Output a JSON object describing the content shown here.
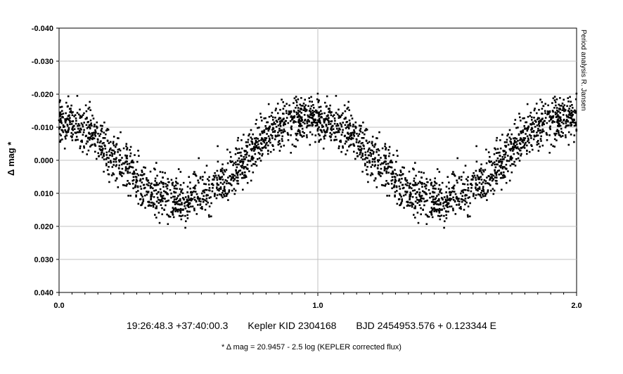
{
  "chart_data": {
    "type": "scatter",
    "title": "",
    "xlabel": "",
    "ylabel": "Δ mag *",
    "xlim": [
      0.0,
      2.0
    ],
    "ylim": [
      0.04,
      -0.04
    ],
    "y_inverted": true,
    "x_ticks": [
      "0.0",
      "1.0",
      "2.0"
    ],
    "y_ticks": [
      "-0.040",
      "-0.030",
      "-0.020",
      "-0.010",
      "0.000",
      "0.010",
      "0.020",
      "0.030",
      "0.040"
    ],
    "grid": true,
    "marker_color": "#000000",
    "series": [
      {
        "description_points": "phased light curve; dense dots",
        "profile_phase": [
          0.0,
          0.05,
          0.1,
          0.15,
          0.2,
          0.25,
          0.3,
          0.35,
          0.4,
          0.45,
          0.5,
          0.55,
          0.6,
          0.65,
          0.7,
          0.75,
          0.8,
          0.85,
          0.9,
          0.95,
          1.0
        ],
        "profile_mag": [
          -0.012,
          -0.011,
          -0.009,
          -0.006,
          -0.002,
          0.002,
          0.006,
          0.009,
          0.011,
          0.012,
          0.012,
          0.01,
          0.008,
          0.005,
          0.001,
          -0.003,
          -0.007,
          -0.01,
          -0.012,
          -0.013,
          -0.012
        ],
        "scatter_mag": 0.004
      }
    ]
  },
  "captions": {
    "coords": "19:26:48.3 +37:40:00.3",
    "target": "Kepler KID 2304168",
    "ephemeris": "BJD 2454953.576 + 0.123344 E",
    "footnote": "* Δ mag = 20.9457 - 2.5 log (KEPLER corrected flux)",
    "side_note": "Period analysis  R. Jansen"
  }
}
